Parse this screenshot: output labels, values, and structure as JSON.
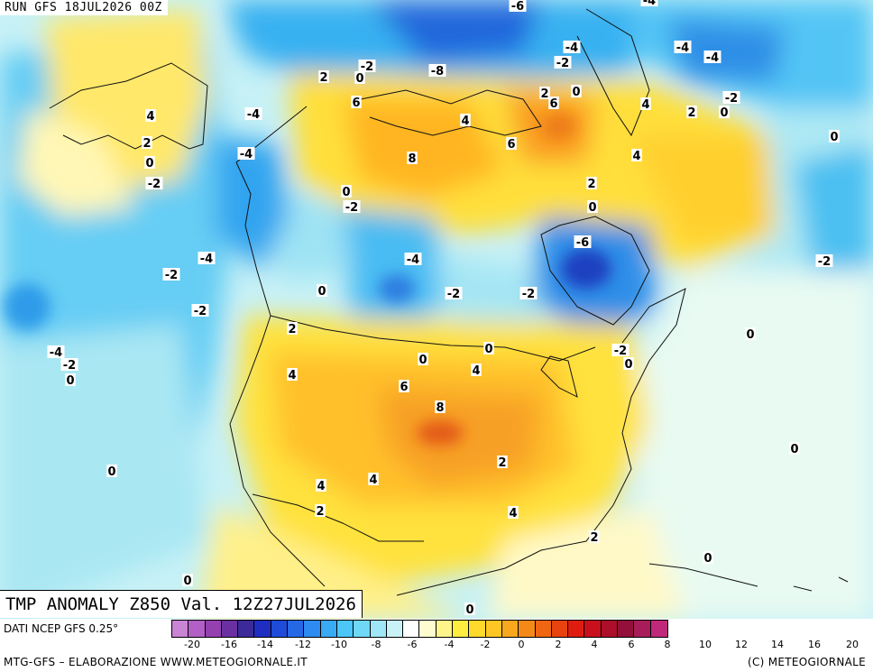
{
  "run_label": "RUN GFS 18JUL2026 00Z",
  "map_title": "TMP ANOMALY Z850 Val. 12Z27JUL2026",
  "source_label": "DATI NCEP GFS 0.25°",
  "credit_left": "MTG-GFS – ELABORAZIONE WWW.METEOGIORNALE.IT",
  "credit_right": "(C) METEOGIORNALE",
  "colors": {
    "deep_blue": "#1f3fc0",
    "blue": "#2e7de0",
    "cyan": "#33c0f0",
    "light_cyan": "#a7ecf7",
    "pale": "#f0fbe9",
    "yellow": "#fff23a",
    "gold": "#ffc22a",
    "orange": "#f3962a",
    "dark_orange": "#e35a14"
  },
  "colorbar": {
    "swatches": [
      "#c984d4",
      "#b25fc6",
      "#9440b0",
      "#6a2fa0",
      "#3b2a98",
      "#1f2dc0",
      "#1e4cd8",
      "#2667e6",
      "#2e8bf0",
      "#39aaf4",
      "#4cc6f6",
      "#70d8f7",
      "#9fe6f7",
      "#c9f2f6",
      "#ffffff",
      "#fffbd0",
      "#fff48a",
      "#ffee40",
      "#ffd92c",
      "#ffc624",
      "#f7a81d",
      "#f38a18",
      "#ee6612",
      "#e8430e",
      "#de1d10",
      "#c8101c",
      "#ad0e2a",
      "#92103a",
      "#a81c5a",
      "#c0287a"
    ],
    "ticks": [
      {
        "label": "-20",
        "v": -20
      },
      {
        "label": "-16",
        "v": -16
      },
      {
        "label": "-14",
        "v": -14
      },
      {
        "label": "-12",
        "v": -12
      },
      {
        "label": "-10",
        "v": -10
      },
      {
        "label": "-8",
        "v": -8
      },
      {
        "label": "-6",
        "v": -6
      },
      {
        "label": "-4",
        "v": -4
      },
      {
        "label": "-2",
        "v": -2
      },
      {
        "label": "0",
        "v": 0
      },
      {
        "label": "2",
        "v": 2
      },
      {
        "label": "4",
        "v": 4
      },
      {
        "label": "6",
        "v": 6
      },
      {
        "label": "8",
        "v": 8
      },
      {
        "label": "10",
        "v": 10
      },
      {
        "label": "12",
        "v": 12
      },
      {
        "label": "14",
        "v": 14
      },
      {
        "label": "16",
        "v": 16
      },
      {
        "label": "20",
        "v": 20
      }
    ]
  },
  "contour_labels": [
    "-6",
    "-4",
    "-4",
    "-2",
    "-4",
    "-4",
    "-8",
    "-2",
    "0",
    "2",
    "2",
    "0",
    "6",
    "4",
    "2",
    "0",
    "4",
    "-4",
    "4",
    "-2",
    "2",
    "0",
    "-4",
    "6",
    "8",
    "6",
    "0",
    "4",
    "2",
    "-2",
    "0",
    "-4",
    "-6",
    "-4",
    "-2",
    "-2",
    "-2",
    "0",
    "-2",
    "0",
    "-2",
    "-4",
    "-2",
    "0",
    "2",
    "-2",
    "0",
    "4",
    "0",
    "0",
    "2",
    "4",
    "6",
    "8",
    "0",
    "0",
    "4",
    "4",
    "2",
    "4",
    "2",
    "0",
    "0",
    "0",
    "0",
    "-2"
  ]
}
